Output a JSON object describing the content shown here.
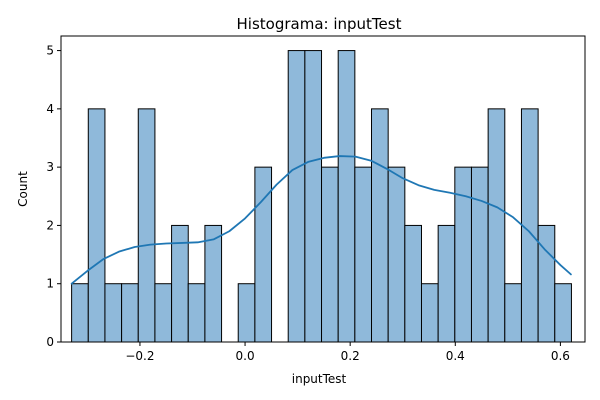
{
  "chart_data": {
    "type": "bar",
    "title": "Histograma: inputTest",
    "xlabel": "inputTest",
    "ylabel": "Count",
    "xlim": [
      -0.3502,
      0.6468
    ],
    "ylim": [
      0,
      5.25
    ],
    "bin_start": -0.33,
    "bin_width": 0.0317,
    "counts": [
      1,
      4,
      1,
      1,
      4,
      1,
      2,
      1,
      2,
      0,
      1,
      3,
      0,
      5,
      5,
      3,
      5,
      3,
      4,
      3,
      2,
      1,
      2,
      3,
      3,
      4,
      1,
      4,
      2,
      1
    ],
    "x_ticks": [
      {
        "value": -0.2,
        "label": "−0.2"
      },
      {
        "value": 0.0,
        "label": "0.0"
      },
      {
        "value": 0.2,
        "label": "0.2"
      },
      {
        "value": 0.4,
        "label": "0.4"
      },
      {
        "value": 0.6,
        "label": "0.6"
      }
    ],
    "y_ticks": [
      {
        "value": 0,
        "label": "0"
      },
      {
        "value": 1,
        "label": "1"
      },
      {
        "value": 2,
        "label": "2"
      },
      {
        "value": 3,
        "label": "3"
      },
      {
        "value": 4,
        "label": "4"
      },
      {
        "value": 5,
        "label": "5"
      }
    ],
    "kde": {
      "x": [
        -0.33,
        -0.3,
        -0.27,
        -0.24,
        -0.21,
        -0.18,
        -0.15,
        -0.12,
        -0.09,
        -0.06,
        -0.03,
        0.0,
        0.03,
        0.06,
        0.09,
        0.12,
        0.15,
        0.18,
        0.21,
        0.24,
        0.27,
        0.3,
        0.33,
        0.36,
        0.39,
        0.42,
        0.45,
        0.48,
        0.51,
        0.54,
        0.57,
        0.6,
        0.62
      ],
      "y": [
        1.0,
        1.22,
        1.42,
        1.55,
        1.63,
        1.67,
        1.69,
        1.7,
        1.71,
        1.76,
        1.9,
        2.12,
        2.4,
        2.7,
        2.95,
        3.09,
        3.16,
        3.19,
        3.18,
        3.11,
        2.97,
        2.81,
        2.69,
        2.61,
        2.56,
        2.5,
        2.42,
        2.31,
        2.14,
        1.9,
        1.59,
        1.32,
        1.16
      ]
    },
    "bar_color": "#8fb9da",
    "bar_edge_color": "#000000",
    "kde_color": "#1f77b4",
    "grid": false,
    "legend": "none"
  }
}
